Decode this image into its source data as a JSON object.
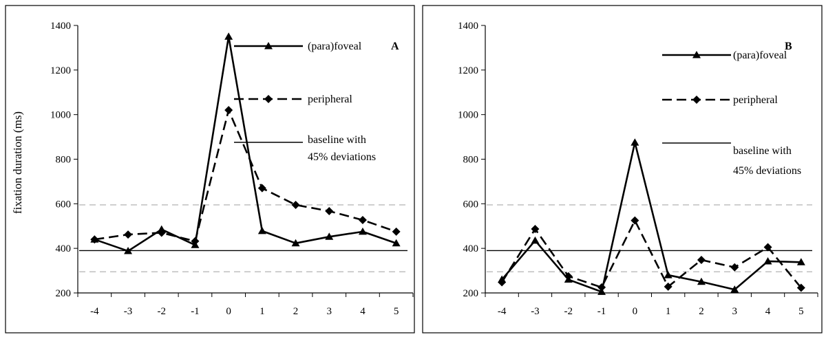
{
  "chart_data": [
    {
      "type": "line",
      "panel_label": "A",
      "title": "",
      "xlabel": "",
      "ylabel": "fixation duration (ms)",
      "x": [
        -4,
        -3,
        -2,
        -1,
        0,
        1,
        2,
        3,
        4,
        5
      ],
      "ylim": [
        200,
        1400
      ],
      "yticks": [
        200,
        400,
        600,
        800,
        1000,
        1200,
        1400
      ],
      "grid": false,
      "legend_position": "top-right",
      "series": [
        {
          "name": "(para)foveal",
          "marker": "triangle",
          "style": "solid",
          "values": [
            440,
            388,
            485,
            415,
            1350,
            478,
            423,
            452,
            475,
            423
          ]
        },
        {
          "name": "peripheral",
          "marker": "diamond",
          "style": "dashed",
          "values": [
            440,
            462,
            470,
            432,
            1020,
            670,
            595,
            567,
            527,
            475
          ]
        }
      ],
      "baseline": {
        "name": "baseline with 45% deviations",
        "label_lines": [
          "baseline with",
          "45% deviations"
        ],
        "value": 390,
        "deviations": [
          295,
          595
        ]
      }
    },
    {
      "type": "line",
      "panel_label": "B",
      "title": "",
      "xlabel": "",
      "ylabel": "",
      "x": [
        -4,
        -3,
        -2,
        -1,
        0,
        1,
        2,
        3,
        4,
        5
      ],
      "ylim": [
        200,
        1400
      ],
      "yticks": [
        200,
        400,
        600,
        800,
        1000,
        1200,
        1400
      ],
      "grid": false,
      "legend_position": "top-right",
      "series": [
        {
          "name": "(para)foveal",
          "marker": "triangle",
          "style": "solid",
          "values": [
            260,
            435,
            260,
            205,
            875,
            280,
            250,
            215,
            342,
            338
          ]
        },
        {
          "name": "peripheral",
          "marker": "diamond",
          "style": "dashed",
          "values": [
            248,
            487,
            275,
            225,
            525,
            228,
            348,
            315,
            405,
            223
          ]
        }
      ],
      "baseline": {
        "name": "baseline with 45% deviations",
        "label_lines": [
          "baseline with",
          "45% deviations"
        ],
        "value": 390,
        "deviations": [
          295,
          595
        ]
      }
    }
  ],
  "colors": {
    "series": "#000000",
    "baseline": "#000000",
    "deviation": "#aaaaaa"
  }
}
